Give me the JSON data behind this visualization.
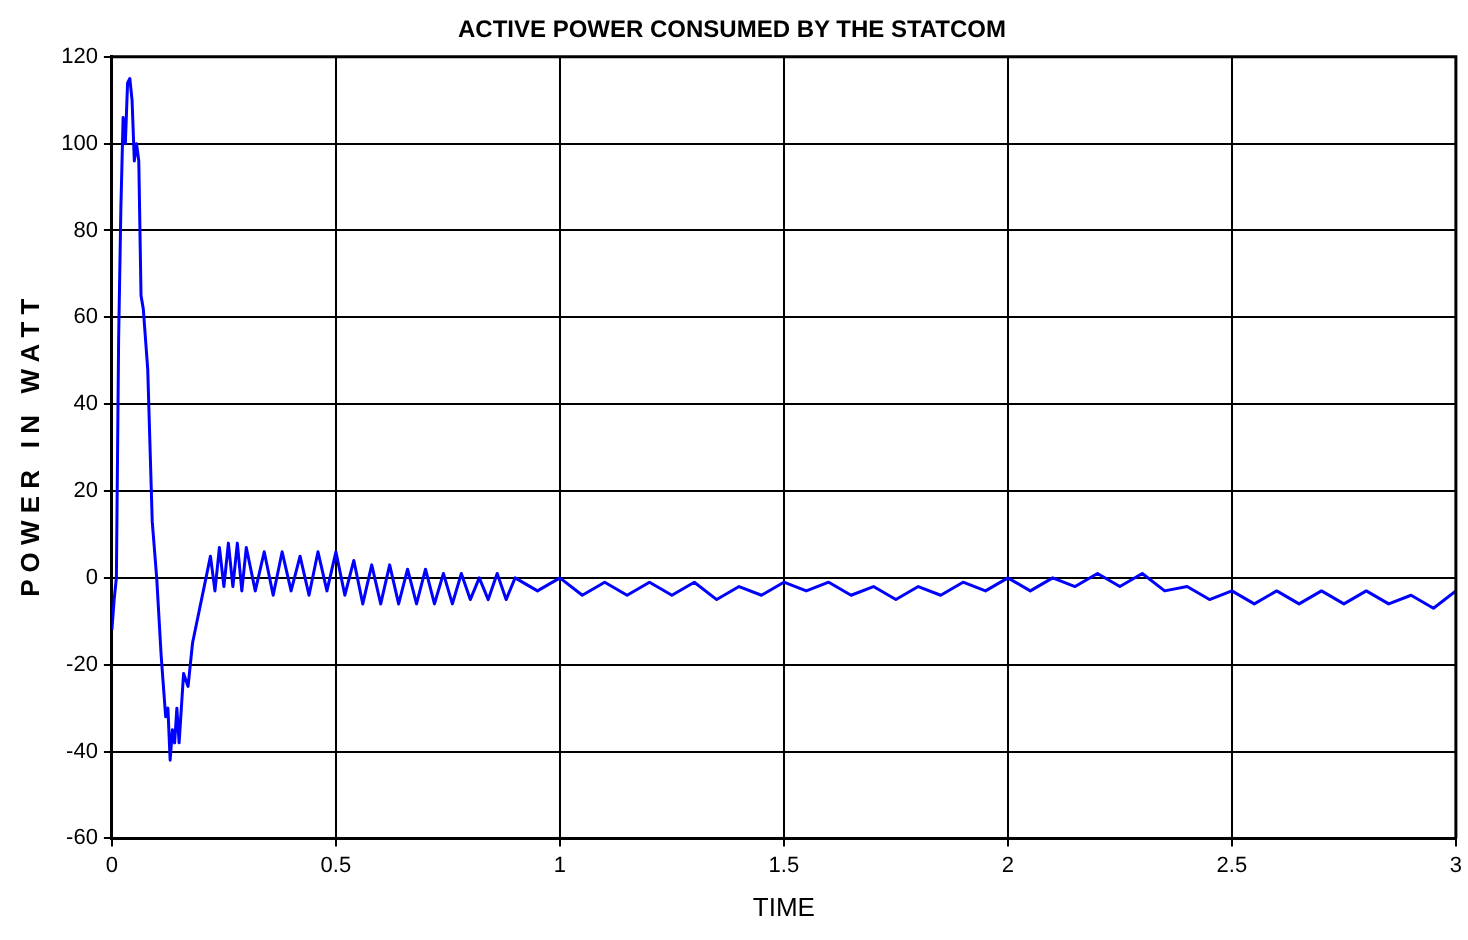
{
  "chart_data": {
    "type": "line",
    "title": "ACTIVE POWER CONSUMED BY THE STATCOM",
    "xlabel": "TIME",
    "ylabel": "P O W E R   I N   W A T T",
    "xlim": [
      0,
      3
    ],
    "xticks": [
      0,
      0.5,
      1,
      1.5,
      2,
      2.5,
      3
    ],
    "ylim": [
      -60,
      120
    ],
    "yticks": [
      -60,
      -40,
      -20,
      0,
      20,
      40,
      60,
      80,
      100,
      120
    ],
    "grid": true,
    "legend": false,
    "marker": "none",
    "line_style": "solid",
    "series": [
      {
        "color": "#0000ff",
        "x": [
          0,
          0.005,
          0.01,
          0.015,
          0.02,
          0.025,
          0.03,
          0.035,
          0.04,
          0.045,
          0.05,
          0.055,
          0.06,
          0.065,
          0.07,
          0.08,
          0.09,
          0.1,
          0.11,
          0.12,
          0.125,
          0.13,
          0.135,
          0.14,
          0.145,
          0.15,
          0.16,
          0.17,
          0.18,
          0.19,
          0.2,
          0.21,
          0.22,
          0.23,
          0.24,
          0.25,
          0.26,
          0.27,
          0.28,
          0.29,
          0.3,
          0.32,
          0.34,
          0.36,
          0.38,
          0.4,
          0.42,
          0.44,
          0.46,
          0.48,
          0.5,
          0.52,
          0.54,
          0.56,
          0.58,
          0.6,
          0.62,
          0.64,
          0.66,
          0.68,
          0.7,
          0.72,
          0.74,
          0.76,
          0.78,
          0.8,
          0.82,
          0.84,
          0.86,
          0.88,
          0.9,
          0.95,
          1,
          1.05,
          1.1,
          1.15,
          1.2,
          1.25,
          1.3,
          1.35,
          1.4,
          1.45,
          1.5,
          1.55,
          1.6,
          1.65,
          1.7,
          1.75,
          1.8,
          1.85,
          1.9,
          1.95,
          2,
          2.05,
          2.1,
          2.15,
          2.2,
          2.25,
          2.3,
          2.35,
          2.4,
          2.45,
          2.5,
          2.55,
          2.6,
          2.65,
          2.7,
          2.75,
          2.8,
          2.85,
          2.9,
          2.95,
          3
        ],
        "values": [
          -12,
          -5,
          0,
          55,
          85,
          106,
          100,
          114,
          115,
          110,
          96,
          100,
          96,
          65,
          62,
          48,
          13,
          0,
          -18,
          -32,
          -30,
          -42,
          -35,
          -38,
          -30,
          -38,
          -22,
          -25,
          -15,
          -10,
          -5,
          0,
          5,
          -3,
          7,
          -2,
          8,
          -2,
          8,
          -3,
          7,
          -3,
          6,
          -4,
          6,
          -3,
          5,
          -4,
          6,
          -3,
          6,
          -4,
          4,
          -6,
          3,
          -6,
          3,
          -6,
          2,
          -6,
          2,
          -6,
          1,
          -6,
          1,
          -5,
          0,
          -5,
          1,
          -5,
          0,
          -3,
          0,
          -4,
          -1,
          -4,
          -1,
          -4,
          -1,
          -5,
          -2,
          -4,
          -1,
          -3,
          -1,
          -4,
          -2,
          -5,
          -2,
          -4,
          -1,
          -3,
          0,
          -3,
          0,
          -2,
          1,
          -2,
          1,
          -3,
          -2,
          -5,
          -3,
          -6,
          -3,
          -6,
          -3,
          -6,
          -3,
          -6,
          -4,
          -7,
          -3
        ]
      }
    ]
  }
}
